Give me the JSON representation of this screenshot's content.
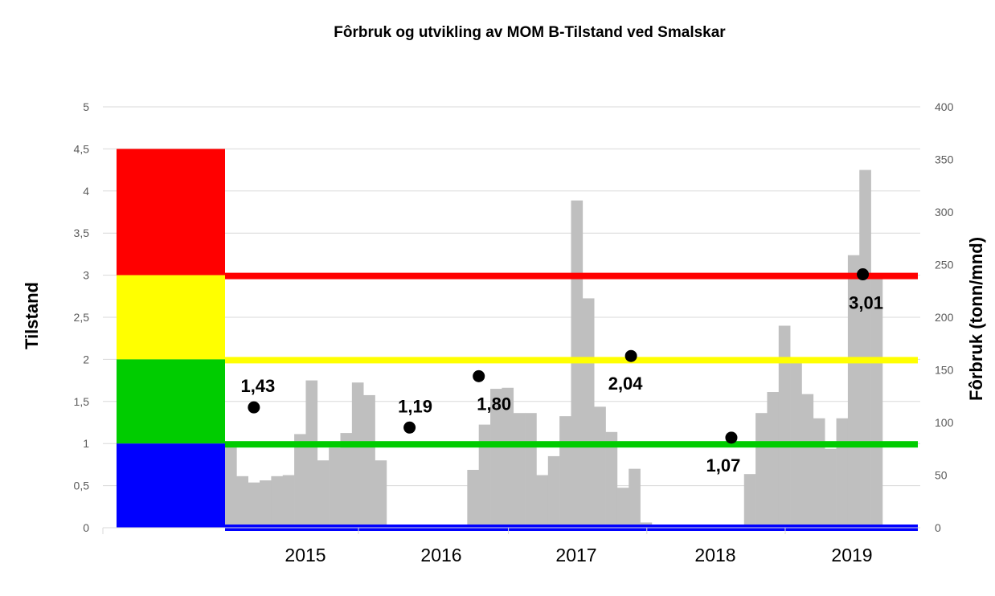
{
  "chart_data": {
    "type": "bar",
    "title": "Fôrbruk og utvikling av MOM B-Tilstand ved Smalskar",
    "ylabel_left": "Tilstand",
    "ylabel_right": "Fôrbruk (tonn/mnd)",
    "left_axis": {
      "range": [
        0,
        5
      ],
      "ticks": [
        "0",
        "0,5",
        "1",
        "1,5",
        "2",
        "2,5",
        "3",
        "3,5",
        "4",
        "4,5",
        "5"
      ]
    },
    "right_axis": {
      "range": [
        0,
        400
      ],
      "ticks": [
        "0",
        "50",
        "100",
        "150",
        "200",
        "250",
        "300",
        "350",
        "400"
      ]
    },
    "year_labels": [
      "2015",
      "2016",
      "2017",
      "2018",
      "2019"
    ],
    "condition_bands": [
      {
        "name": "Tilstand 4",
        "from": 3.0,
        "to": 4.5,
        "color": "#ff0000"
      },
      {
        "name": "Tilstand 3",
        "from": 2.0,
        "to": 3.0,
        "color": "#ffff00"
      },
      {
        "name": "Tilstand 2",
        "from": 1.0,
        "to": 2.0,
        "color": "#00cc00"
      },
      {
        "name": "Tilstand 1",
        "from": 0.0,
        "to": 1.0,
        "color": "#0000ff"
      }
    ],
    "threshold_lines": [
      {
        "value": 3.0,
        "color": "#ff0000"
      },
      {
        "value": 2.0,
        "color": "#ffff00"
      },
      {
        "value": 1.0,
        "color": "#00cc00"
      },
      {
        "value": 0.0,
        "color": "#0000ff"
      }
    ],
    "series": [
      {
        "name": "Fôrbruk (tonn/mnd)",
        "kind": "monthly-bars",
        "color": "#bfbfbf",
        "start_month": "2014-12",
        "values": [
          77,
          49,
          43,
          45,
          49,
          50,
          89,
          140,
          64,
          76,
          90,
          138,
          126,
          64,
          0,
          0,
          0,
          0,
          0,
          0,
          0,
          55,
          98,
          132,
          133,
          109,
          109,
          50,
          68,
          106,
          311,
          218,
          115,
          91,
          38,
          56,
          5,
          0,
          0,
          0,
          0,
          0,
          0,
          0,
          0,
          51,
          109,
          129,
          192,
          161,
          127,
          104,
          75,
          104,
          259,
          340,
          240
        ]
      },
      {
        "name": "MOM B-Tilstand",
        "kind": "points",
        "color": "#000000",
        "points": [
          {
            "month": 2.5,
            "value": 1.43,
            "label": "1,43"
          },
          {
            "month": 16.0,
            "value": 1.19,
            "label": "1,19"
          },
          {
            "month": 22.0,
            "value": 1.8,
            "label": "1,80"
          },
          {
            "month": 35.2,
            "value": 2.04,
            "label": "2,04"
          },
          {
            "month": 43.9,
            "value": 1.07,
            "label": "1,07"
          },
          {
            "month": 55.3,
            "value": 3.01,
            "label": "3,01"
          }
        ]
      }
    ]
  }
}
